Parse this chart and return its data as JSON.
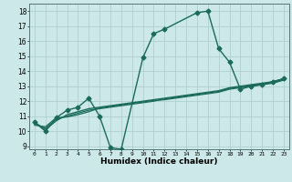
{
  "title": "",
  "xlabel": "Humidex (Indice chaleur)",
  "xlim": [
    -0.5,
    23.5
  ],
  "ylim": [
    8.8,
    18.5
  ],
  "xticks": [
    0,
    1,
    2,
    3,
    4,
    5,
    6,
    7,
    8,
    9,
    10,
    11,
    12,
    13,
    14,
    15,
    16,
    17,
    18,
    19,
    20,
    21,
    22,
    23
  ],
  "yticks": [
    9,
    10,
    11,
    12,
    13,
    14,
    15,
    16,
    17,
    18
  ],
  "background_color": "#cce8e8",
  "grid_color": "#aacccc",
  "line_color": "#1a6b5a",
  "series": [
    {
      "x": [
        0,
        1,
        2,
        3,
        4,
        5,
        6,
        7,
        8,
        10,
        11,
        12,
        15,
        16,
        17,
        18,
        19,
        20,
        21,
        22,
        23
      ],
      "y": [
        10.6,
        10.0,
        10.9,
        11.4,
        11.6,
        12.2,
        11.0,
        8.9,
        8.8,
        14.9,
        16.5,
        16.8,
        17.9,
        18.0,
        15.5,
        14.6,
        12.8,
        13.0,
        13.1,
        13.3,
        13.5
      ],
      "marker": "D",
      "markersize": 2.5,
      "linewidth": 1.0,
      "linestyle": "-",
      "connected": false
    },
    {
      "x": [
        0,
        1,
        2,
        3,
        4,
        5,
        6,
        7,
        8,
        9,
        10,
        11,
        12,
        13,
        14,
        15,
        16,
        17,
        18,
        19,
        20,
        21,
        22,
        23
      ],
      "y": [
        10.6,
        10.1,
        10.7,
        11.1,
        11.3,
        11.5,
        11.6,
        11.7,
        11.8,
        11.9,
        12.0,
        12.1,
        12.2,
        12.3,
        12.4,
        12.5,
        12.6,
        12.7,
        12.9,
        13.0,
        13.1,
        13.2,
        13.3,
        13.5
      ],
      "marker": "",
      "markersize": 0,
      "linewidth": 1.0,
      "linestyle": "-",
      "connected": true
    },
    {
      "x": [
        0,
        1,
        2,
        3,
        4,
        5,
        6,
        7,
        8,
        9,
        10,
        11,
        12,
        13,
        14,
        15,
        16,
        17,
        18,
        19,
        20,
        21,
        22,
        23
      ],
      "y": [
        10.5,
        10.2,
        10.8,
        11.0,
        11.2,
        11.4,
        11.5,
        11.6,
        11.7,
        11.8,
        11.9,
        12.0,
        12.15,
        12.25,
        12.35,
        12.45,
        12.55,
        12.65,
        12.85,
        12.95,
        13.05,
        13.15,
        13.25,
        13.45
      ],
      "marker": "",
      "markersize": 0,
      "linewidth": 0.9,
      "linestyle": "-",
      "connected": true
    },
    {
      "x": [
        0,
        1,
        2,
        3,
        4,
        5,
        6,
        7,
        8,
        9,
        10,
        11,
        12,
        13,
        14,
        15,
        16,
        17,
        18,
        19,
        20,
        21,
        22,
        23
      ],
      "y": [
        10.4,
        10.3,
        10.9,
        10.95,
        11.1,
        11.3,
        11.55,
        11.65,
        11.75,
        11.85,
        11.95,
        12.05,
        12.1,
        12.2,
        12.3,
        12.4,
        12.5,
        12.6,
        12.8,
        12.9,
        13.0,
        13.1,
        13.2,
        13.4
      ],
      "marker": "",
      "markersize": 0,
      "linewidth": 0.9,
      "linestyle": "-",
      "connected": true
    }
  ]
}
